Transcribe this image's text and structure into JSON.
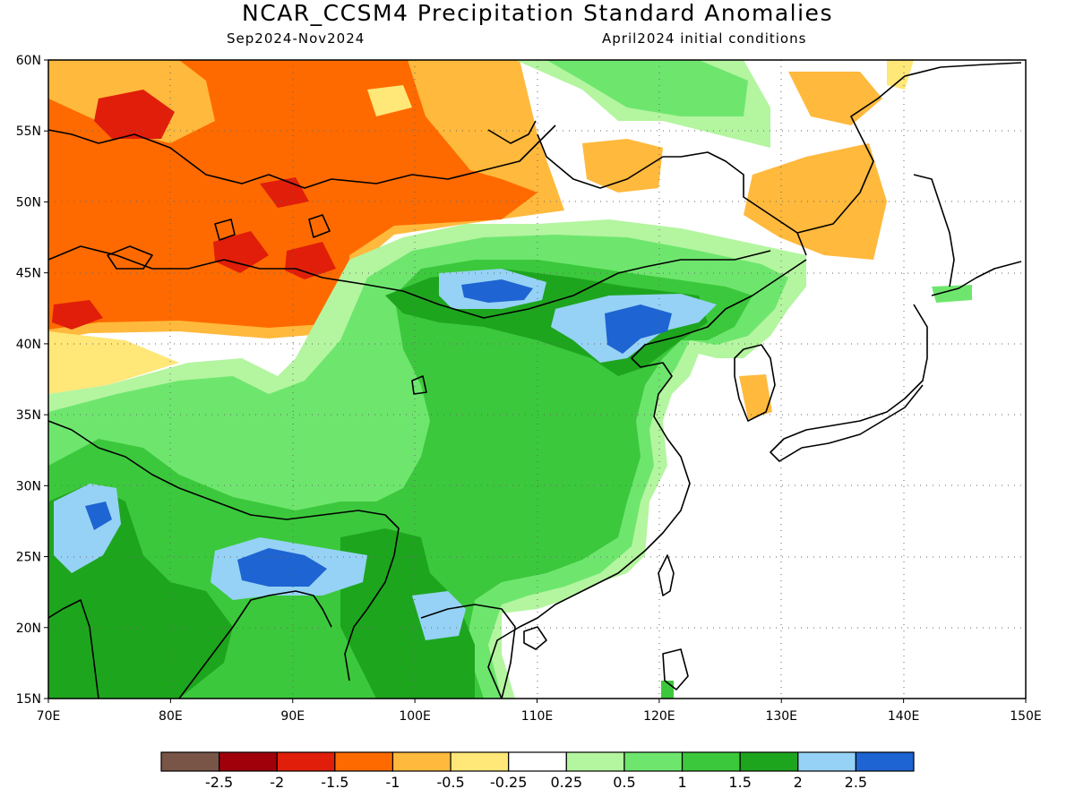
{
  "title": "NCAR_CCSM4 Precipitation Standard Anomalies",
  "subtitle_left": "Sep2024-Nov2024",
  "subtitle_right": "April2024 initial conditions",
  "lon_ticks": [
    "70E",
    "80E",
    "90E",
    "100E",
    "110E",
    "120E",
    "130E",
    "140E",
    "150E"
  ],
  "lat_ticks": [
    "60N",
    "55N",
    "50N",
    "45N",
    "40N",
    "35N",
    "30N",
    "25N",
    "20N",
    "15N"
  ],
  "colorbar": {
    "colors": [
      "#795548",
      "#a0000a",
      "#e01e0a",
      "#ff6a00",
      "#ffb93c",
      "#ffe778",
      "#ffffff",
      "#b4f5a0",
      "#6ee66e",
      "#3cc83c",
      "#1ea51e",
      "#96d2f5",
      "#1e64d2"
    ],
    "labels": [
      "-2.5",
      "-2",
      "-1.5",
      "-1",
      "-0.5",
      "-0.25",
      "0.25",
      "0.5",
      "1",
      "1.5",
      "2",
      "2.5"
    ]
  }
}
